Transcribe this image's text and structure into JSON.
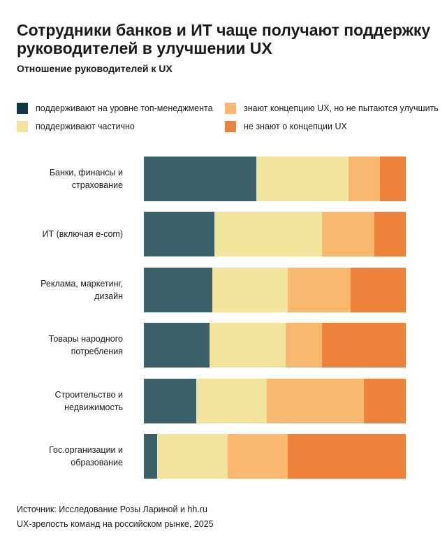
{
  "chart_data": {
    "type": "stacked-bar-horizontal-100",
    "title": "Сотрудники банков и ИТ чаще получают поддержку руководителей в улучшении UX",
    "subtitle": "Отношение руководителей к UX",
    "categories": [
      "Банки, финансы и страхование",
      "ИТ (включая e-com)",
      "Реклама, маркетинг, дизайн",
      "Товары народного потребления",
      "Строительство и недвижимость",
      "Гос.организации и образование"
    ],
    "series": [
      {
        "name": "поддерживают на уровне топ-менеджмента",
        "color": "#3a6069",
        "legend_color": "#0f3a42",
        "values": [
          43,
          27,
          26,
          25,
          20,
          5
        ]
      },
      {
        "name": "поддерживают частично",
        "color": "#f2e49c",
        "values": [
          35,
          41,
          29,
          29,
          27,
          27
        ]
      },
      {
        "name": "знают концепцию UX, но не пытаются улучшить",
        "color": "#f9b86f",
        "values": [
          12,
          20,
          24,
          14,
          37,
          23
        ]
      },
      {
        "name": "не знают о концепции UX",
        "color": "#ee823b",
        "values": [
          10,
          12,
          21,
          32,
          16,
          45
        ]
      }
    ],
    "source": "Источник: Исследование Розы Лариной и hh.ru",
    "note": "UX-зрелость команд на российском рынке, 2025"
  }
}
